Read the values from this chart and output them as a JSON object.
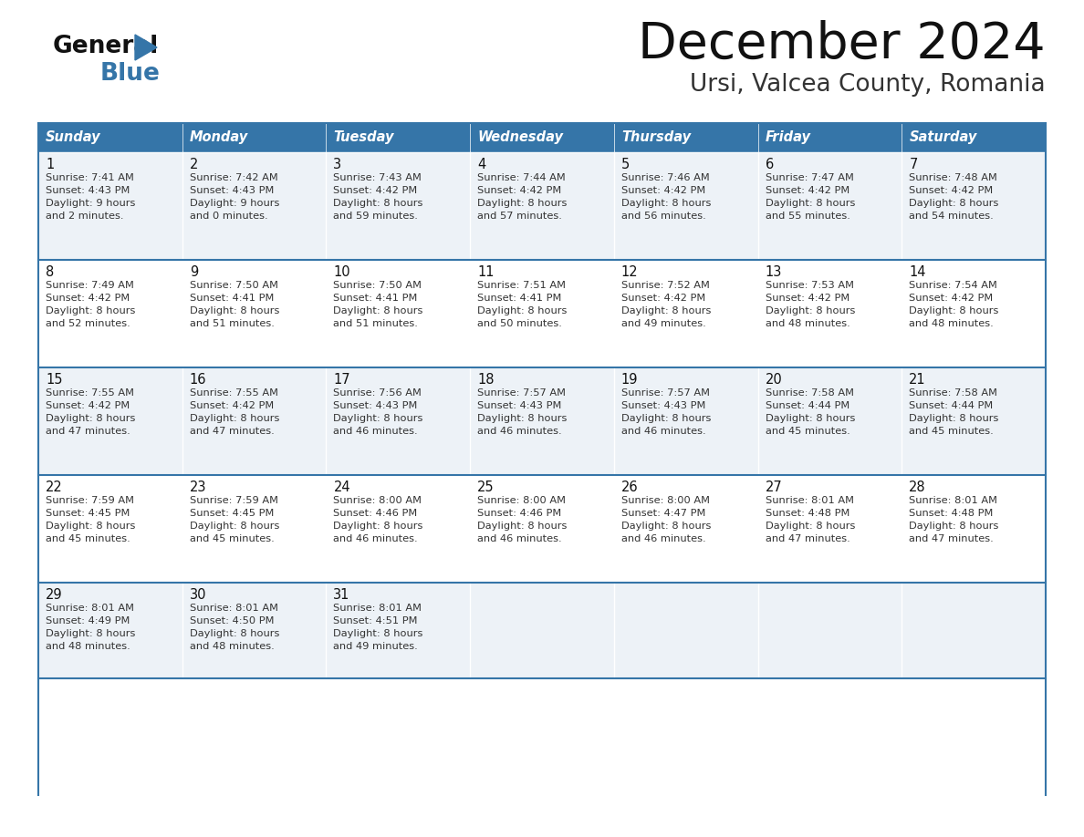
{
  "title": "December 2024",
  "subtitle": "Ursi, Valcea County, Romania",
  "days_of_week": [
    "Sunday",
    "Monday",
    "Tuesday",
    "Wednesday",
    "Thursday",
    "Friday",
    "Saturday"
  ],
  "header_bg": "#3575a8",
  "header_text": "#ffffff",
  "row_bg_odd": "#edf2f7",
  "row_bg_even": "#ffffff",
  "divider_color": "#3575a8",
  "cell_text_color": "#333333",
  "day_num_color": "#111111",
  "calendar_data": [
    [
      {
        "day": 1,
        "sunrise": "7:41 AM",
        "sunset": "4:43 PM",
        "daylight_line1": "Daylight: 9 hours",
        "daylight_line2": "and 2 minutes."
      },
      {
        "day": 2,
        "sunrise": "7:42 AM",
        "sunset": "4:43 PM",
        "daylight_line1": "Daylight: 9 hours",
        "daylight_line2": "and 0 minutes."
      },
      {
        "day": 3,
        "sunrise": "7:43 AM",
        "sunset": "4:42 PM",
        "daylight_line1": "Daylight: 8 hours",
        "daylight_line2": "and 59 minutes."
      },
      {
        "day": 4,
        "sunrise": "7:44 AM",
        "sunset": "4:42 PM",
        "daylight_line1": "Daylight: 8 hours",
        "daylight_line2": "and 57 minutes."
      },
      {
        "day": 5,
        "sunrise": "7:46 AM",
        "sunset": "4:42 PM",
        "daylight_line1": "Daylight: 8 hours",
        "daylight_line2": "and 56 minutes."
      },
      {
        "day": 6,
        "sunrise": "7:47 AM",
        "sunset": "4:42 PM",
        "daylight_line1": "Daylight: 8 hours",
        "daylight_line2": "and 55 minutes."
      },
      {
        "day": 7,
        "sunrise": "7:48 AM",
        "sunset": "4:42 PM",
        "daylight_line1": "Daylight: 8 hours",
        "daylight_line2": "and 54 minutes."
      }
    ],
    [
      {
        "day": 8,
        "sunrise": "7:49 AM",
        "sunset": "4:42 PM",
        "daylight_line1": "Daylight: 8 hours",
        "daylight_line2": "and 52 minutes."
      },
      {
        "day": 9,
        "sunrise": "7:50 AM",
        "sunset": "4:41 PM",
        "daylight_line1": "Daylight: 8 hours",
        "daylight_line2": "and 51 minutes."
      },
      {
        "day": 10,
        "sunrise": "7:50 AM",
        "sunset": "4:41 PM",
        "daylight_line1": "Daylight: 8 hours",
        "daylight_line2": "and 51 minutes."
      },
      {
        "day": 11,
        "sunrise": "7:51 AM",
        "sunset": "4:41 PM",
        "daylight_line1": "Daylight: 8 hours",
        "daylight_line2": "and 50 minutes."
      },
      {
        "day": 12,
        "sunrise": "7:52 AM",
        "sunset": "4:42 PM",
        "daylight_line1": "Daylight: 8 hours",
        "daylight_line2": "and 49 minutes."
      },
      {
        "day": 13,
        "sunrise": "7:53 AM",
        "sunset": "4:42 PM",
        "daylight_line1": "Daylight: 8 hours",
        "daylight_line2": "and 48 minutes."
      },
      {
        "day": 14,
        "sunrise": "7:54 AM",
        "sunset": "4:42 PM",
        "daylight_line1": "Daylight: 8 hours",
        "daylight_line2": "and 48 minutes."
      }
    ],
    [
      {
        "day": 15,
        "sunrise": "7:55 AM",
        "sunset": "4:42 PM",
        "daylight_line1": "Daylight: 8 hours",
        "daylight_line2": "and 47 minutes."
      },
      {
        "day": 16,
        "sunrise": "7:55 AM",
        "sunset": "4:42 PM",
        "daylight_line1": "Daylight: 8 hours",
        "daylight_line2": "and 47 minutes."
      },
      {
        "day": 17,
        "sunrise": "7:56 AM",
        "sunset": "4:43 PM",
        "daylight_line1": "Daylight: 8 hours",
        "daylight_line2": "and 46 minutes."
      },
      {
        "day": 18,
        "sunrise": "7:57 AM",
        "sunset": "4:43 PM",
        "daylight_line1": "Daylight: 8 hours",
        "daylight_line2": "and 46 minutes."
      },
      {
        "day": 19,
        "sunrise": "7:57 AM",
        "sunset": "4:43 PM",
        "daylight_line1": "Daylight: 8 hours",
        "daylight_line2": "and 46 minutes."
      },
      {
        "day": 20,
        "sunrise": "7:58 AM",
        "sunset": "4:44 PM",
        "daylight_line1": "Daylight: 8 hours",
        "daylight_line2": "and 45 minutes."
      },
      {
        "day": 21,
        "sunrise": "7:58 AM",
        "sunset": "4:44 PM",
        "daylight_line1": "Daylight: 8 hours",
        "daylight_line2": "and 45 minutes."
      }
    ],
    [
      {
        "day": 22,
        "sunrise": "7:59 AM",
        "sunset": "4:45 PM",
        "daylight_line1": "Daylight: 8 hours",
        "daylight_line2": "and 45 minutes."
      },
      {
        "day": 23,
        "sunrise": "7:59 AM",
        "sunset": "4:45 PM",
        "daylight_line1": "Daylight: 8 hours",
        "daylight_line2": "and 45 minutes."
      },
      {
        "day": 24,
        "sunrise": "8:00 AM",
        "sunset": "4:46 PM",
        "daylight_line1": "Daylight: 8 hours",
        "daylight_line2": "and 46 minutes."
      },
      {
        "day": 25,
        "sunrise": "8:00 AM",
        "sunset": "4:46 PM",
        "daylight_line1": "Daylight: 8 hours",
        "daylight_line2": "and 46 minutes."
      },
      {
        "day": 26,
        "sunrise": "8:00 AM",
        "sunset": "4:47 PM",
        "daylight_line1": "Daylight: 8 hours",
        "daylight_line2": "and 46 minutes."
      },
      {
        "day": 27,
        "sunrise": "8:01 AM",
        "sunset": "4:48 PM",
        "daylight_line1": "Daylight: 8 hours",
        "daylight_line2": "and 47 minutes."
      },
      {
        "day": 28,
        "sunrise": "8:01 AM",
        "sunset": "4:48 PM",
        "daylight_line1": "Daylight: 8 hours",
        "daylight_line2": "and 47 minutes."
      }
    ],
    [
      {
        "day": 29,
        "sunrise": "8:01 AM",
        "sunset": "4:49 PM",
        "daylight_line1": "Daylight: 8 hours",
        "daylight_line2": "and 48 minutes."
      },
      {
        "day": 30,
        "sunrise": "8:01 AM",
        "sunset": "4:50 PM",
        "daylight_line1": "Daylight: 8 hours",
        "daylight_line2": "and 48 minutes."
      },
      {
        "day": 31,
        "sunrise": "8:01 AM",
        "sunset": "4:51 PM",
        "daylight_line1": "Daylight: 8 hours",
        "daylight_line2": "and 49 minutes."
      },
      null,
      null,
      null,
      null
    ]
  ]
}
